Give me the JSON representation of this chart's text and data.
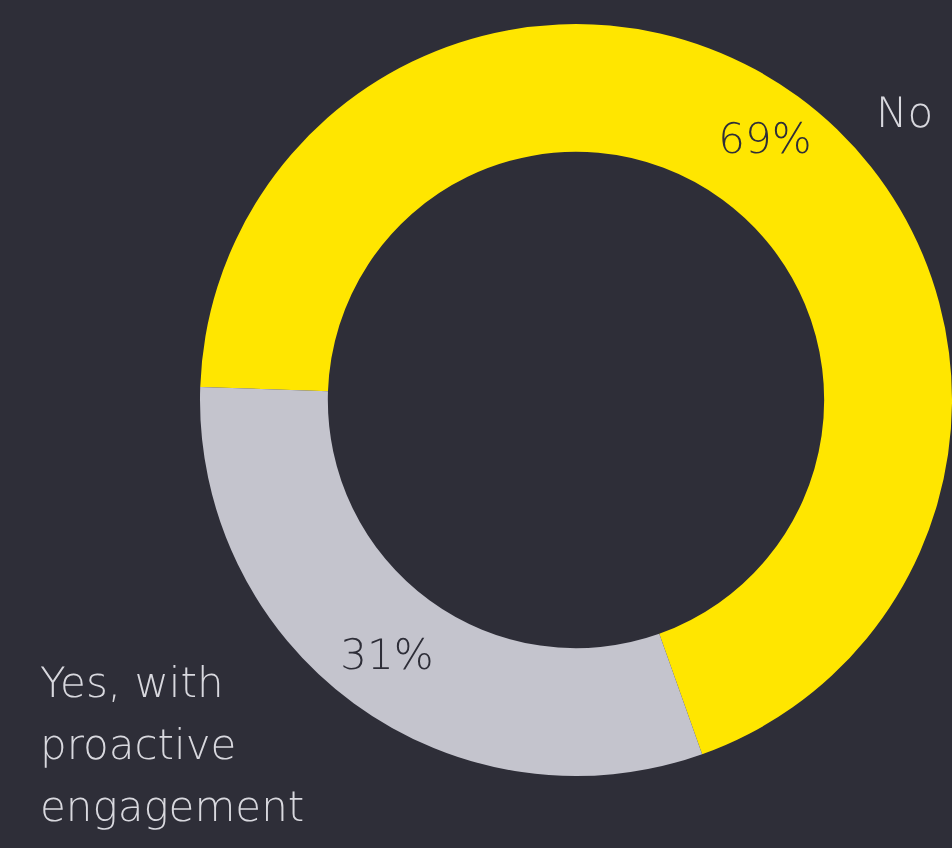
{
  "chart_data": {
    "type": "donut",
    "categories": [
      "No",
      "Yes, with proactive engagement"
    ],
    "values": [
      69,
      31
    ],
    "colors": [
      "#ffe600",
      "#c4c4cd"
    ],
    "value_labels": [
      "69%",
      "31%"
    ],
    "legend": false
  }
}
